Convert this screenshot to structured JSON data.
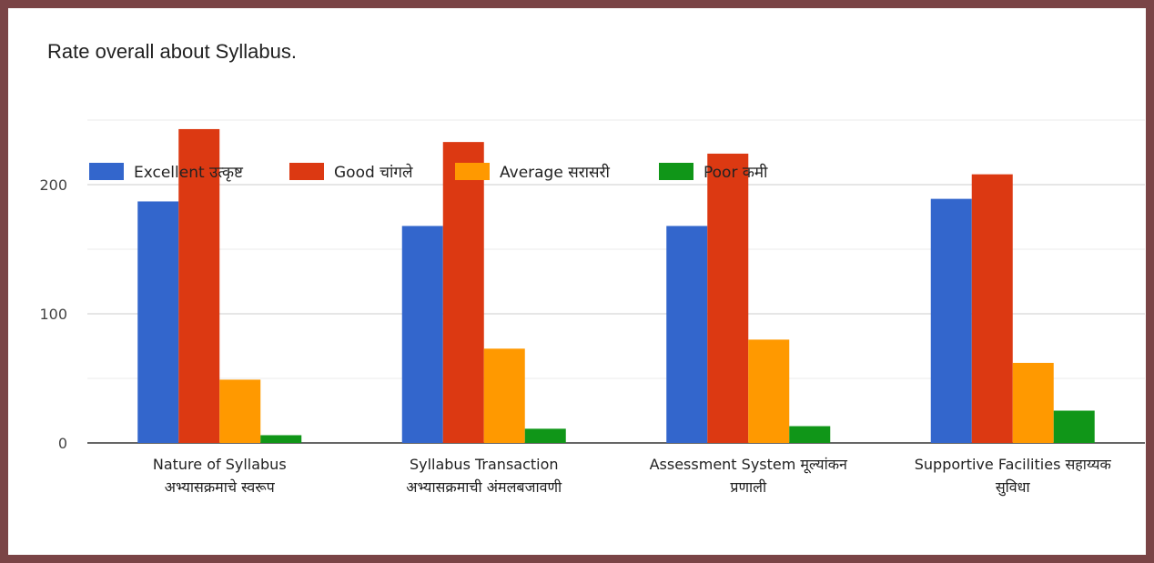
{
  "chart_data": {
    "type": "bar",
    "title": "Rate overall about Syllabus.",
    "categories": [
      [
        "Nature of Syllabus",
        "अभ्यासक्रमाचे स्वरूप"
      ],
      [
        "Syllabus Transaction",
        "अभ्यासक्रमाची अंमलबजावणी"
      ],
      [
        "Assessment System मूल्यांकन",
        "प्रणाली"
      ],
      [
        "Supportive Facilities सहाय्यक",
        "सुविधा"
      ]
    ],
    "series": [
      {
        "name": "Excellent उत्कृष्ट",
        "color": "#3366cc",
        "values": [
          187,
          168,
          168,
          189
        ]
      },
      {
        "name": "Good चांगले",
        "color": "#dc3912",
        "values": [
          243,
          233,
          224,
          208
        ]
      },
      {
        "name": "Average सरासरी",
        "color": "#ff9900",
        "values": [
          49,
          73,
          80,
          62
        ]
      },
      {
        "name": "Poor कमी",
        "color": "#109618",
        "values": [
          6,
          11,
          13,
          25
        ]
      }
    ],
    "yticks": [
      0,
      100,
      200
    ],
    "ylim": [
      0,
      250
    ],
    "grid": true,
    "legend_position": "top"
  }
}
